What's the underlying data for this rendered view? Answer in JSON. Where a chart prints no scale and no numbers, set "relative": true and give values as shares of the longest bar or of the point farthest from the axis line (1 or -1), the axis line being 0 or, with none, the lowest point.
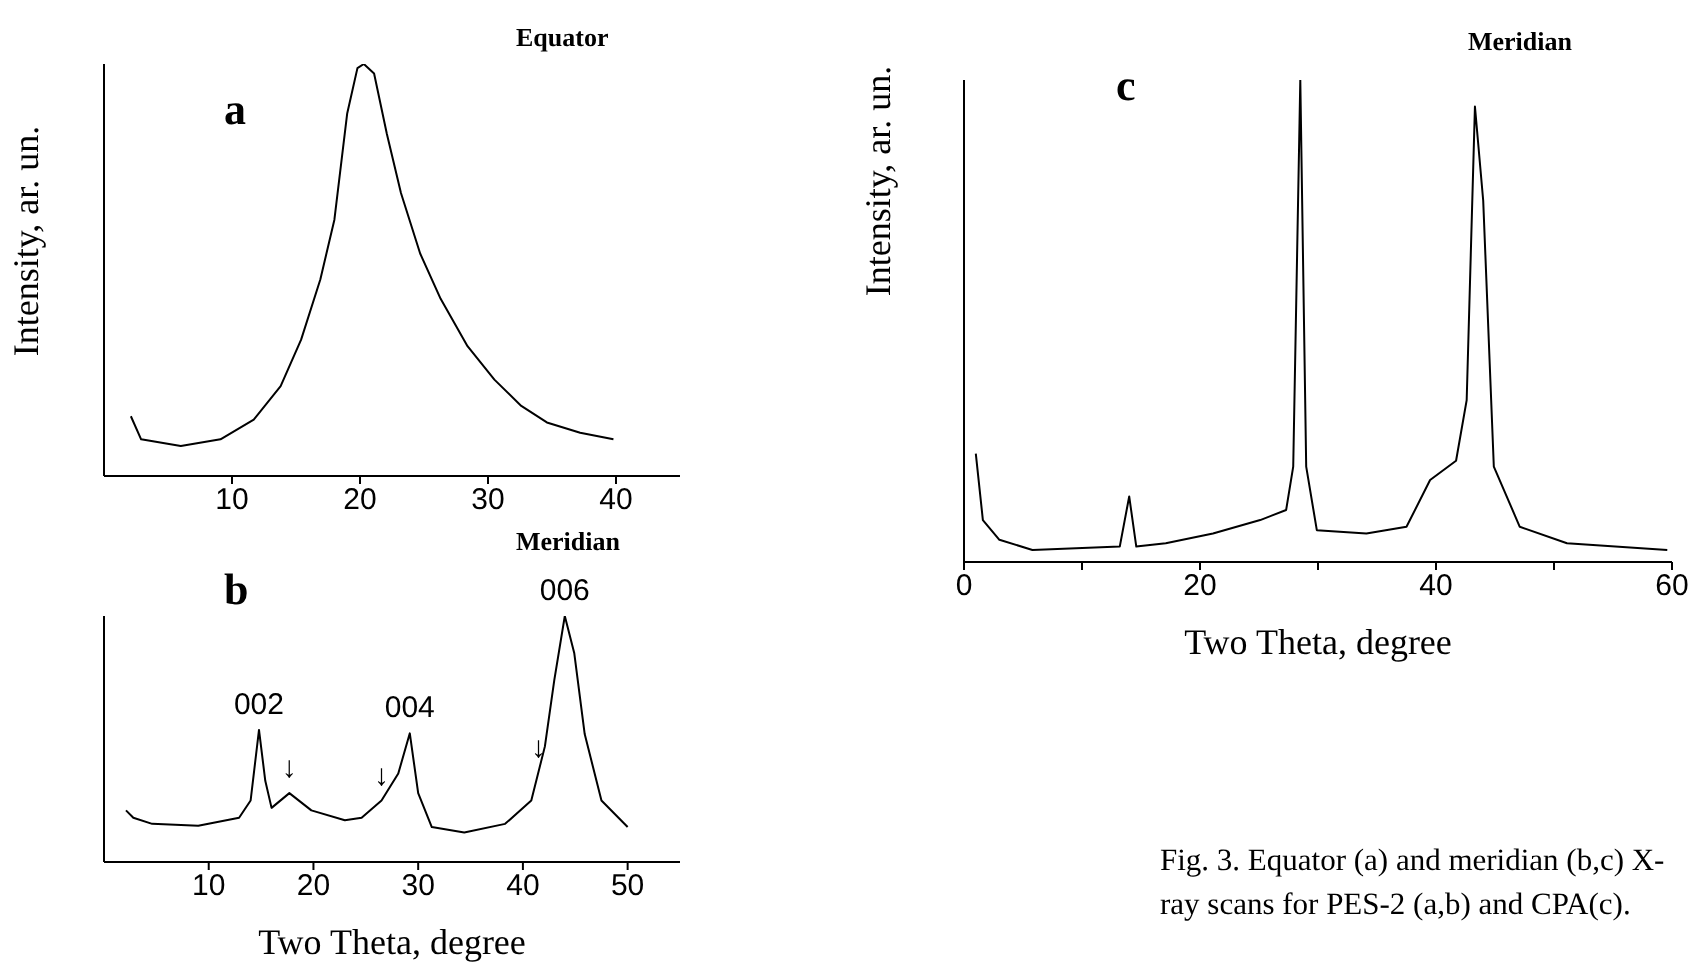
{
  "chart_data": [
    {
      "type": "line",
      "relative": true,
      "ylabel": "Intensity, ar. un.",
      "annotations": [
        "a",
        "Equator"
      ],
      "xlim": [
        0,
        45
      ],
      "xticks": [
        10,
        20,
        30,
        40
      ],
      "tick_labels": "x",
      "grid": false,
      "legend": false,
      "marker": "none",
      "line_style": "solid",
      "series": [
        {
          "color": "#000000",
          "x": [
            2.1,
            2.9,
            6,
            9.1,
            11.7,
            13.8,
            15.4,
            16.9,
            18,
            19,
            19.8,
            20.3,
            21.1,
            22.1,
            23.2,
            24.7,
            26.3,
            28.4,
            30.5,
            32.6,
            34.6,
            37.2,
            39.8
          ],
          "values": [
            0.145,
            0.089,
            0.073,
            0.089,
            0.137,
            0.218,
            0.331,
            0.477,
            0.622,
            0.88,
            0.99,
            1,
            0.977,
            0.83,
            0.687,
            0.54,
            0.43,
            0.315,
            0.234,
            0.17,
            0.13,
            0.105,
            0.089
          ]
        }
      ]
    },
    {
      "type": "line",
      "relative": true,
      "xlabel": "Two Theta, degree",
      "annotations": [
        "b",
        "Meridian",
        {
          "text": "002",
          "x": 14.8,
          "y": 0.537
        },
        {
          "text": "004",
          "x": 29.2,
          "y": 0.523
        },
        {
          "text": "006",
          "x": 44,
          "y": 1
        },
        {
          "text": "↓",
          "x": 17.7,
          "y": 0.28
        },
        {
          "text": "↓",
          "x": 26.5,
          "y": 0.25
        },
        {
          "text": "↓",
          "x": 41.5,
          "y": 0.36
        }
      ],
      "xlim": [
        0,
        55
      ],
      "xticks": [
        10,
        20,
        30,
        40,
        50
      ],
      "tick_labels": "x",
      "grid": false,
      "legend": false,
      "marker": "none",
      "line_style": "solid",
      "series": [
        {
          "color": "#000000",
          "x": [
            2.1,
            2.8,
            4.6,
            9,
            12.9,
            14,
            14.8,
            15.4,
            16,
            17.7,
            19.8,
            23,
            24.6,
            26.5,
            28.1,
            29.2,
            30,
            31.3,
            34.4,
            38.3,
            40.8,
            42.1,
            43,
            44,
            44.9,
            45.9,
            47.5,
            50
          ],
          "values": [
            0.21,
            0.18,
            0.155,
            0.147,
            0.18,
            0.25,
            0.537,
            0.33,
            0.22,
            0.28,
            0.21,
            0.17,
            0.18,
            0.25,
            0.36,
            0.523,
            0.28,
            0.142,
            0.12,
            0.155,
            0.25,
            0.47,
            0.74,
            1,
            0.85,
            0.52,
            0.25,
            0.142
          ]
        }
      ]
    },
    {
      "type": "line",
      "relative": true,
      "ylabel": "Intensity, ar. un.",
      "xlabel": "Two Theta, degree",
      "annotations": [
        "c",
        "Meridian",
        "Fig. 3. Equator (a) and meridian (b,c) X-ray scans for PES-2 (a,b) and CPA(c)."
      ],
      "xlim": [
        0,
        60
      ],
      "xticks": [
        0,
        {
          "value": 10,
          "label": null
        },
        20,
        {
          "value": 30,
          "label": null
        },
        40,
        {
          "value": 50,
          "label": null
        },
        60
      ],
      "tick_labels": "x",
      "grid": false,
      "legend": false,
      "marker": "none",
      "line_style": "solid",
      "series": [
        {
          "color": "#000000",
          "x": [
            1,
            1.6,
            3,
            5.8,
            13.2,
            14,
            14.6,
            17.1,
            21.1,
            25.1,
            27.3,
            27.9,
            28.5,
            29,
            29.9,
            34.1,
            37.5,
            39.5,
            41.7,
            42.6,
            43.3,
            44,
            44.9,
            47.1,
            51.1,
            59.6
          ],
          "values": [
            0.225,
            0.087,
            0.046,
            0.025,
            0.032,
            0.136,
            0.032,
            0.039,
            0.059,
            0.087,
            0.108,
            0.198,
            1,
            0.198,
            0.066,
            0.059,
            0.073,
            0.17,
            0.21,
            0.336,
            0.945,
            0.75,
            0.198,
            0.073,
            0.039,
            0.025
          ]
        }
      ]
    }
  ]
}
